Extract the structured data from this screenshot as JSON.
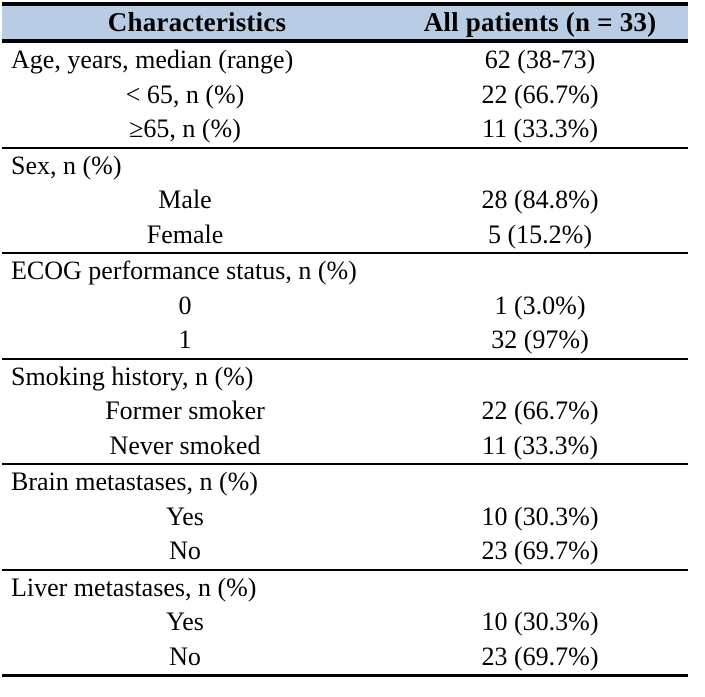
{
  "colors": {
    "header_bg": "#b8cce4",
    "rule": "#000000",
    "text": "#000000"
  },
  "table": {
    "header": {
      "characteristics": "Characteristics",
      "all_patients": "All patients (n = 33)"
    },
    "sections": [
      {
        "rows": [
          {
            "label": "Age, years, median (range)",
            "value": "62 (38-73)"
          },
          {
            "label": "< 65, n (%)",
            "value": "22 (66.7%)"
          },
          {
            "label": "≥65, n (%)",
            "value": "11 (33.3%)"
          }
        ]
      },
      {
        "rows": [
          {
            "label": "Sex, n (%)",
            "value": ""
          },
          {
            "label": "Male",
            "value": "28 (84.8%)"
          },
          {
            "label": "Female",
            "value": "5 (15.2%)"
          }
        ]
      },
      {
        "rows": [
          {
            "label": "ECOG performance status, n (%)",
            "value": ""
          },
          {
            "label": "0",
            "value": "1 (3.0%)"
          },
          {
            "label": "1",
            "value": "32 (97%)"
          }
        ]
      },
      {
        "rows": [
          {
            "label": "Smoking history, n (%)",
            "value": ""
          },
          {
            "label": "Former smoker",
            "value": "22 (66.7%)"
          },
          {
            "label": "Never smoked",
            "value": "11 (33.3%)"
          }
        ]
      },
      {
        "rows": [
          {
            "label": "Brain metastases, n (%)",
            "value": ""
          },
          {
            "label": "Yes",
            "value": "10 (30.3%)"
          },
          {
            "label": "No",
            "value": "23 (69.7%)"
          }
        ]
      },
      {
        "rows": [
          {
            "label": "Liver metastases, n (%)",
            "value": ""
          },
          {
            "label": "Yes",
            "value": "10 (30.3%)"
          },
          {
            "label": "No",
            "value": "23 (69.7%)"
          }
        ]
      }
    ]
  }
}
